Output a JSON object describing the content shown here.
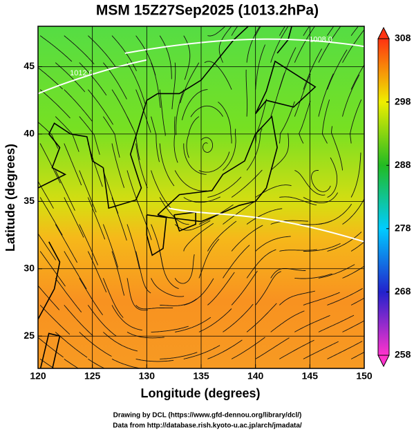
{
  "chart_data": {
    "type": "map",
    "title": "MSM 15Z27Sep2025 (1013.2hPa)",
    "x_label": "Longitude (degrees)",
    "y_label": "Latitude  (degrees)",
    "xlim": [
      120,
      150
    ],
    "xticks": [
      120,
      125,
      130,
      135,
      140,
      145,
      150
    ],
    "ylim": [
      22.6,
      48
    ],
    "yticks": [
      25,
      30,
      35,
      40,
      45
    ],
    "grid": true,
    "contour_labels": [
      "1008.0",
      "1012.0"
    ],
    "colorbar": {
      "lim": [
        258,
        308
      ],
      "ticks": [
        258,
        268,
        278,
        288,
        298,
        308
      ],
      "colors": [
        "#ff33cc",
        "#2222cc",
        "#00ccff",
        "#22bb22",
        "#eeee00",
        "#ff3311"
      ]
    },
    "credits": [
      "Drawing by DCL (https://www.gfd-dennou.org/library/dcl/)",
      "Data from http://database.rish.kyoto-u.ac.jp/arch/jmadata/"
    ]
  }
}
